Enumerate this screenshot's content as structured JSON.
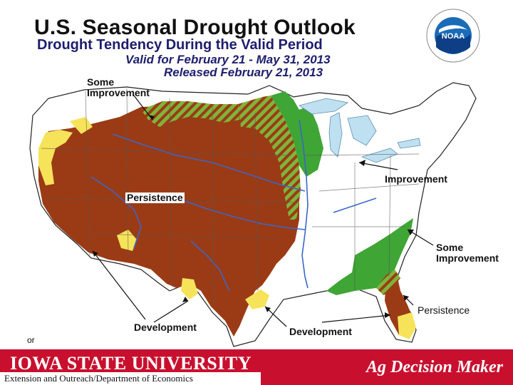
{
  "header": {
    "title": "U.S. Seasonal Drought Outlook",
    "subtitle": "Drought Tendency During the Valid Period",
    "valid_period": "Valid for February 21 - May 31, 2013",
    "released": "Released February 21, 2013",
    "logo_text": "NOAA"
  },
  "map": {
    "labels": {
      "some_improvement_top": "Some\nImprovement",
      "persistence_main": "Persistence",
      "improvement": "Improvement",
      "some_improvement_se": "Some\nImprovement",
      "persistence_se": "Persistence",
      "development_sw": "Development",
      "development_south": "Development",
      "partial_left": "or"
    },
    "legend_colors": {
      "persistence": "#9b3b15",
      "development": "#f6e35a",
      "improvement": "#3fa535",
      "some_improvement_hatch": "#8dbf3d",
      "lakes": "#bfe0f0",
      "rivers": "#3a66c9"
    }
  },
  "footer": {
    "institution": "IOWA STATE UNIVERSITY",
    "department": "Extension and Outreach/Department of Economics",
    "program": "Ag Decision Maker",
    "bar_color": "#c8102e"
  }
}
